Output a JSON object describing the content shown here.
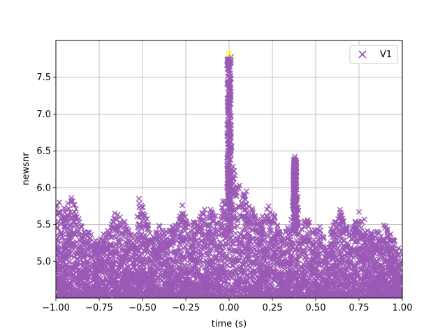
{
  "chart_data": {
    "type": "scatter",
    "title": "",
    "xlabel": "time (s)",
    "ylabel": "newsnr",
    "xlim": [
      -1.0,
      1.0
    ],
    "ylim": [
      4.5,
      8.0
    ],
    "xticks": [
      "−1.00",
      "−0.75",
      "−0.50",
      "−0.25",
      "0.00",
      "0.25",
      "0.50",
      "0.75",
      "1.00"
    ],
    "yticks": [
      "5.0",
      "5.5",
      "6.0",
      "6.5",
      "7.0",
      "7.5"
    ],
    "grid": true,
    "legend": {
      "placement": "top-right",
      "entries": [
        "V1"
      ]
    },
    "marker": "x",
    "colors": {
      "series": "#9b59b6",
      "highlight": "#ffff00",
      "grid": "#b0b0b0",
      "frame": "#000000"
    },
    "series": [
      {
        "name": "V1",
        "density_profile": [
          {
            "t": -1.0,
            "ymax": 5.8
          },
          {
            "t": -0.95,
            "ymax": 5.75
          },
          {
            "t": -0.9,
            "ymax": 5.85
          },
          {
            "t": -0.85,
            "ymax": 5.5
          },
          {
            "t": -0.8,
            "ymax": 5.4
          },
          {
            "t": -0.75,
            "ymax": 5.3
          },
          {
            "t": -0.7,
            "ymax": 5.45
          },
          {
            "t": -0.65,
            "ymax": 5.65
          },
          {
            "t": -0.6,
            "ymax": 5.55
          },
          {
            "t": -0.55,
            "ymax": 5.3
          },
          {
            "t": -0.52,
            "ymax": 5.85
          },
          {
            "t": -0.48,
            "ymax": 5.65
          },
          {
            "t": -0.45,
            "ymax": 5.3
          },
          {
            "t": -0.4,
            "ymax": 5.5
          },
          {
            "t": -0.35,
            "ymax": 5.45
          },
          {
            "t": -0.3,
            "ymax": 5.5
          },
          {
            "t": -0.27,
            "ymax": 5.75
          },
          {
            "t": -0.22,
            "ymax": 5.5
          },
          {
            "t": -0.18,
            "ymax": 5.6
          },
          {
            "t": -0.14,
            "ymax": 5.75
          },
          {
            "t": -0.1,
            "ymax": 5.7
          },
          {
            "t": -0.07,
            "ymax": 5.6
          },
          {
            "t": -0.04,
            "ymax": 5.8
          },
          {
            "t": -0.02,
            "ymax": 5.9
          },
          {
            "t": -0.01,
            "ymax": 6.5
          },
          {
            "t": 0.0,
            "ymax": 7.8
          },
          {
            "t": 0.01,
            "ymax": 7.2
          },
          {
            "t": 0.02,
            "ymax": 6.4
          },
          {
            "t": 0.04,
            "ymax": 6.05
          },
          {
            "t": 0.07,
            "ymax": 5.95
          },
          {
            "t": 0.1,
            "ymax": 5.9
          },
          {
            "t": 0.14,
            "ymax": 5.7
          },
          {
            "t": 0.18,
            "ymax": 5.55
          },
          {
            "t": 0.21,
            "ymax": 5.7
          },
          {
            "t": 0.24,
            "ymax": 5.8
          },
          {
            "t": 0.28,
            "ymax": 5.5
          },
          {
            "t": 0.32,
            "ymax": 5.4
          },
          {
            "t": 0.35,
            "ymax": 5.5
          },
          {
            "t": 0.37,
            "ymax": 6.0
          },
          {
            "t": 0.38,
            "ymax": 6.4
          },
          {
            "t": 0.39,
            "ymax": 6.1
          },
          {
            "t": 0.41,
            "ymax": 5.5
          },
          {
            "t": 0.45,
            "ymax": 5.6
          },
          {
            "t": 0.48,
            "ymax": 5.45
          },
          {
            "t": 0.52,
            "ymax": 5.5
          },
          {
            "t": 0.56,
            "ymax": 5.3
          },
          {
            "t": 0.6,
            "ymax": 5.5
          },
          {
            "t": 0.64,
            "ymax": 5.7
          },
          {
            "t": 0.67,
            "ymax": 5.5
          },
          {
            "t": 0.71,
            "ymax": 5.45
          },
          {
            "t": 0.75,
            "ymax": 5.65
          },
          {
            "t": 0.79,
            "ymax": 5.55
          },
          {
            "t": 0.83,
            "ymax": 5.35
          },
          {
            "t": 0.87,
            "ymax": 5.5
          },
          {
            "t": 0.91,
            "ymax": 5.5
          },
          {
            "t": 0.95,
            "ymax": 5.3
          },
          {
            "t": 1.0,
            "ymax": 5.15
          }
        ],
        "outliers": [
          {
            "x": -0.91,
            "y": 5.86
          },
          {
            "x": -0.52,
            "y": 5.85
          },
          {
            "x": -0.66,
            "y": 5.65
          },
          {
            "x": -0.27,
            "y": 5.76
          },
          {
            "x": 0.06,
            "y": 6.03
          },
          {
            "x": 0.1,
            "y": 5.95
          },
          {
            "x": 0.38,
            "y": 6.42
          },
          {
            "x": 0.75,
            "y": 5.67
          },
          {
            "x": 0.64,
            "y": 5.7
          },
          {
            "x": -0.98,
            "y": 5.8
          }
        ]
      }
    ],
    "highlight_point": {
      "x": 0.0,
      "y": 7.82
    }
  }
}
